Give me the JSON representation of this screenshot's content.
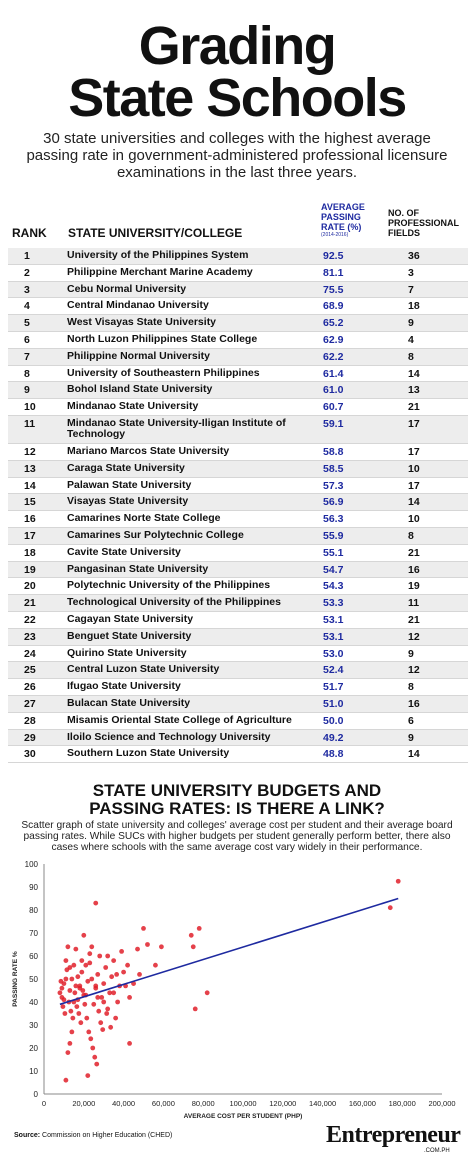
{
  "header": {
    "title_line1": "Grading",
    "title_line2": "State Schools",
    "subtitle": "30 state universities and colleges with the highest average passing rate in government-administered professional licensure examinations in the last three years."
  },
  "table": {
    "col_rank": "RANK",
    "col_name": "STATE UNIVERSITY/COLLEGE",
    "col_rate": "AVERAGE PASSING RATE (%)",
    "col_rate_sub": "(2014-2016)",
    "col_fields": "NO. OF PROFESSIONAL FIELDS",
    "rows": [
      {
        "rank": "1",
        "name": "University of the Philippines System",
        "rate": "92.5",
        "fields": "36"
      },
      {
        "rank": "2",
        "name": "Philippine Merchant Marine Academy",
        "rate": "81.1",
        "fields": "3"
      },
      {
        "rank": "3",
        "name": "Cebu Normal University",
        "rate": "75.5",
        "fields": "7"
      },
      {
        "rank": "4",
        "name": "Central Mindanao University",
        "rate": "68.9",
        "fields": "18"
      },
      {
        "rank": "5",
        "name": "West Visayas State University",
        "rate": "65.2",
        "fields": "9"
      },
      {
        "rank": "6",
        "name": "North Luzon Philippines State College",
        "rate": "62.9",
        "fields": "4"
      },
      {
        "rank": "7",
        "name": "Philippine Normal University",
        "rate": "62.2",
        "fields": "8"
      },
      {
        "rank": "8",
        "name": "University of Southeastern Philippines",
        "rate": "61.4",
        "fields": "14"
      },
      {
        "rank": "9",
        "name": "Bohol Island State University",
        "rate": "61.0",
        "fields": "13"
      },
      {
        "rank": "10",
        "name": "Mindanao State University",
        "rate": "60.7",
        "fields": "21"
      },
      {
        "rank": "11",
        "name": "Mindanao State University-Iligan Institute of Technology",
        "rate": "59.1",
        "fields": "17"
      },
      {
        "rank": "12",
        "name": "Mariano Marcos State University",
        "rate": "58.8",
        "fields": "17"
      },
      {
        "rank": "13",
        "name": "Caraga State University",
        "rate": "58.5",
        "fields": "10"
      },
      {
        "rank": "14",
        "name": "Palawan State University",
        "rate": "57.3",
        "fields": "17"
      },
      {
        "rank": "15",
        "name": "Visayas State University",
        "rate": "56.9",
        "fields": "14"
      },
      {
        "rank": "16",
        "name": "Camarines Norte State College",
        "rate": "56.3",
        "fields": "10"
      },
      {
        "rank": "17",
        "name": "Camarines Sur Polytechnic College",
        "rate": "55.9",
        "fields": "8"
      },
      {
        "rank": "18",
        "name": "Cavite State University",
        "rate": "55.1",
        "fields": "21"
      },
      {
        "rank": "19",
        "name": "Pangasinan State University",
        "rate": "54.7",
        "fields": "16"
      },
      {
        "rank": "20",
        "name": "Polytechnic University of the Philippines",
        "rate": "54.3",
        "fields": "19"
      },
      {
        "rank": "21",
        "name": "Technological University of the Philippines",
        "rate": "53.3",
        "fields": "11"
      },
      {
        "rank": "22",
        "name": "Cagayan State University",
        "rate": "53.1",
        "fields": "21"
      },
      {
        "rank": "23",
        "name": "Benguet State University",
        "rate": "53.1",
        "fields": "12"
      },
      {
        "rank": "24",
        "name": "Quirino State University",
        "rate": "53.0",
        "fields": "9"
      },
      {
        "rank": "25",
        "name": "Central Luzon State University",
        "rate": "52.4",
        "fields": "12"
      },
      {
        "rank": "26",
        "name": "Ifugao State University",
        "rate": "51.7",
        "fields": "8"
      },
      {
        "rank": "27",
        "name": "Bulacan State University",
        "rate": "51.0",
        "fields": "16"
      },
      {
        "rank": "28",
        "name": "Misamis Oriental State College of Agriculture",
        "rate": "50.0",
        "fields": "6"
      },
      {
        "rank": "29",
        "name": "Iloilo Science and Technology University",
        "rate": "49.2",
        "fields": "9"
      },
      {
        "rank": "30",
        "name": "Southern Luzon State University",
        "rate": "48.8",
        "fields": "14"
      }
    ]
  },
  "section": {
    "title_line1": "STATE UNIVERSITY BUDGETS AND",
    "title_line2": "PASSING RATES: IS THERE A LINK?",
    "description": "Scatter graph of state university and colleges' average cost per student and their average board passing rates. While SUCs with higher budgets per student generally perform better, there also cases where schools with the same average cost vary widely in their performance."
  },
  "chart_data": {
    "type": "scatter",
    "title": "",
    "xlabel": "AVERAGE COST PER STUDENT (PHP)",
    "ylabel": "PASSING RATE %",
    "xlim": [
      0,
      200000
    ],
    "ylim": [
      0,
      100
    ],
    "x_ticks": [
      "0",
      "20,000",
      "40,000",
      "60,000",
      "80,000",
      "100,000",
      "120,000",
      "140,000",
      "160,000",
      "180,000",
      "200,000"
    ],
    "y_ticks": [
      "0",
      "10",
      "20",
      "30",
      "40",
      "50",
      "60",
      "70",
      "80",
      "90",
      "100"
    ],
    "grid": false,
    "point_color": "#e0202a",
    "trendline_color": "#1e2aa0",
    "trendline": {
      "x": [
        8000,
        178000
      ],
      "y": [
        39,
        85
      ]
    },
    "points": [
      {
        "x": 178000,
        "y": 92.5
      },
      {
        "x": 174000,
        "y": 81
      },
      {
        "x": 26000,
        "y": 83
      },
      {
        "x": 82000,
        "y": 44
      },
      {
        "x": 78000,
        "y": 72
      },
      {
        "x": 74000,
        "y": 69
      },
      {
        "x": 75000,
        "y": 64
      },
      {
        "x": 76000,
        "y": 37
      },
      {
        "x": 50000,
        "y": 72
      },
      {
        "x": 52000,
        "y": 65
      },
      {
        "x": 47000,
        "y": 63
      },
      {
        "x": 59000,
        "y": 64
      },
      {
        "x": 56000,
        "y": 56
      },
      {
        "x": 42000,
        "y": 56
      },
      {
        "x": 45000,
        "y": 48
      },
      {
        "x": 43000,
        "y": 42
      },
      {
        "x": 40000,
        "y": 53
      },
      {
        "x": 39000,
        "y": 62
      },
      {
        "x": 38000,
        "y": 47
      },
      {
        "x": 37000,
        "y": 40
      },
      {
        "x": 36000,
        "y": 33
      },
      {
        "x": 35000,
        "y": 58
      },
      {
        "x": 34000,
        "y": 51
      },
      {
        "x": 33000,
        "y": 44
      },
      {
        "x": 32000,
        "y": 37
      },
      {
        "x": 31000,
        "y": 55
      },
      {
        "x": 30000,
        "y": 48
      },
      {
        "x": 29000,
        "y": 42
      },
      {
        "x": 28000,
        "y": 60
      },
      {
        "x": 27000,
        "y": 52
      },
      {
        "x": 26000,
        "y": 46
      },
      {
        "x": 25000,
        "y": 39
      },
      {
        "x": 24000,
        "y": 64
      },
      {
        "x": 23000,
        "y": 57
      },
      {
        "x": 22000,
        "y": 49
      },
      {
        "x": 21000,
        "y": 43
      },
      {
        "x": 20000,
        "y": 69
      },
      {
        "x": 19000,
        "y": 53
      },
      {
        "x": 18000,
        "y": 47
      },
      {
        "x": 17000,
        "y": 41
      },
      {
        "x": 16000,
        "y": 63
      },
      {
        "x": 15000,
        "y": 56
      },
      {
        "x": 14000,
        "y": 50
      },
      {
        "x": 13000,
        "y": 45
      },
      {
        "x": 12000,
        "y": 64
      },
      {
        "x": 11000,
        "y": 58
      },
      {
        "x": 10000,
        "y": 48
      },
      {
        "x": 9000,
        "y": 42
      },
      {
        "x": 9500,
        "y": 38
      },
      {
        "x": 10500,
        "y": 35
      },
      {
        "x": 11500,
        "y": 54
      },
      {
        "x": 12500,
        "y": 40
      },
      {
        "x": 13500,
        "y": 36
      },
      {
        "x": 14500,
        "y": 33
      },
      {
        "x": 15500,
        "y": 44
      },
      {
        "x": 16500,
        "y": 38
      },
      {
        "x": 17500,
        "y": 35
      },
      {
        "x": 18500,
        "y": 31
      },
      {
        "x": 19500,
        "y": 45
      },
      {
        "x": 20500,
        "y": 39
      },
      {
        "x": 21500,
        "y": 33
      },
      {
        "x": 22500,
        "y": 27
      },
      {
        "x": 23500,
        "y": 24
      },
      {
        "x": 24500,
        "y": 20
      },
      {
        "x": 25500,
        "y": 16
      },
      {
        "x": 26500,
        "y": 13
      },
      {
        "x": 27500,
        "y": 36
      },
      {
        "x": 28500,
        "y": 31
      },
      {
        "x": 29500,
        "y": 28
      },
      {
        "x": 14000,
        "y": 27
      },
      {
        "x": 13000,
        "y": 22
      },
      {
        "x": 12000,
        "y": 18
      },
      {
        "x": 11000,
        "y": 6
      },
      {
        "x": 22000,
        "y": 8
      },
      {
        "x": 20000,
        "y": 43
      },
      {
        "x": 18000,
        "y": 46
      },
      {
        "x": 17000,
        "y": 51
      },
      {
        "x": 21000,
        "y": 56
      },
      {
        "x": 23000,
        "y": 61
      },
      {
        "x": 9000,
        "y": 46
      },
      {
        "x": 8000,
        "y": 44
      },
      {
        "x": 10000,
        "y": 41
      },
      {
        "x": 31500,
        "y": 35
      },
      {
        "x": 33500,
        "y": 29
      },
      {
        "x": 36500,
        "y": 52
      },
      {
        "x": 41000,
        "y": 47
      },
      {
        "x": 48000,
        "y": 52
      },
      {
        "x": 43000,
        "y": 22
      },
      {
        "x": 35000,
        "y": 44
      },
      {
        "x": 27000,
        "y": 42
      },
      {
        "x": 15000,
        "y": 40
      },
      {
        "x": 16000,
        "y": 47
      },
      {
        "x": 19000,
        "y": 58
      },
      {
        "x": 24000,
        "y": 50
      },
      {
        "x": 26000,
        "y": 47
      },
      {
        "x": 30000,
        "y": 40
      },
      {
        "x": 32000,
        "y": 60
      },
      {
        "x": 11000,
        "y": 50
      },
      {
        "x": 13000,
        "y": 55
      },
      {
        "x": 8500,
        "y": 49
      }
    ]
  },
  "footer": {
    "source_label": "Source:",
    "source_text": "Commission on Higher Education (CHED)",
    "brand": "Entrepreneur",
    "brand_sub": ".COM.PH"
  }
}
